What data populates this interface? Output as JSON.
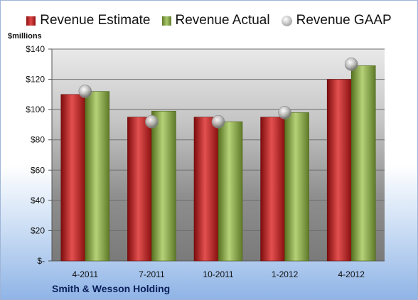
{
  "unit_label": "$millions",
  "company": "Smith & Wesson Holding",
  "legend": [
    {
      "label": "Revenue Estimate",
      "swatch": "red"
    },
    {
      "label": "Revenue Actual",
      "swatch": "green"
    },
    {
      "label": "Revenue GAAP",
      "swatch": "gaap"
    }
  ],
  "chart_data": {
    "type": "bar",
    "categories": [
      "4-2011",
      "7-2011",
      "10-2011",
      "1-2012",
      "4-2012"
    ],
    "series": [
      {
        "name": "Revenue Estimate",
        "type": "bar",
        "color": "#c21a1a",
        "values": [
          110,
          95,
          95,
          95,
          120
        ]
      },
      {
        "name": "Revenue Actual",
        "type": "bar",
        "color": "#8fae4f",
        "values": [
          112,
          99,
          92,
          98,
          129
        ]
      },
      {
        "name": "Revenue GAAP",
        "type": "scatter",
        "color": "#b8b8b8",
        "values": [
          112,
          92,
          92,
          98,
          130
        ]
      }
    ],
    "ylim": [
      0,
      140
    ],
    "yticks": [
      0,
      20,
      40,
      60,
      80,
      100,
      120,
      140
    ],
    "ytick_labels": [
      "$-",
      "$20",
      "$40",
      "$60",
      "$80",
      "$100",
      "$120",
      "$140"
    ],
    "grid": true,
    "legend_position": "top"
  }
}
